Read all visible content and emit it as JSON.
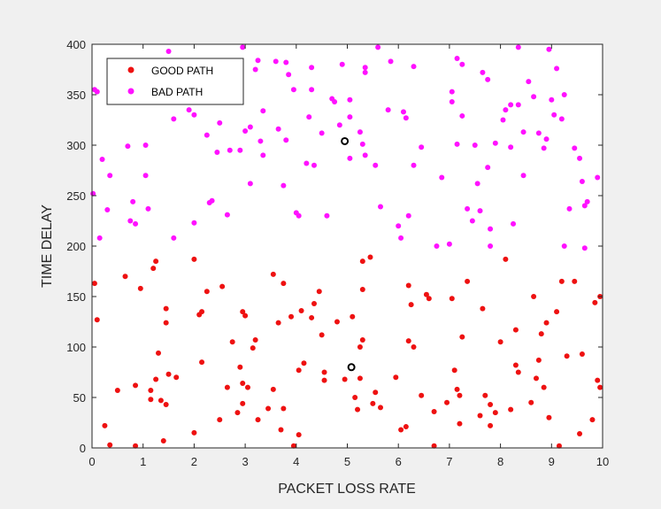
{
  "chart_data": {
    "type": "scatter",
    "xlabel": "PACKET LOSS RATE",
    "ylabel": "TIME DELAY",
    "xlim": [
      0,
      10
    ],
    "ylim": [
      0,
      400
    ],
    "xticks": [
      0,
      1,
      2,
      3,
      4,
      5,
      6,
      7,
      8,
      9,
      10
    ],
    "yticks": [
      0,
      50,
      100,
      150,
      200,
      250,
      300,
      350,
      400
    ],
    "grid": false,
    "legend_position": "top-left",
    "series": [
      {
        "name": "GOOD PATH",
        "color": "#ee1111",
        "points": [
          [
            0.05,
            163
          ],
          [
            0.1,
            127
          ],
          [
            0.25,
            22
          ],
          [
            0.35,
            3
          ],
          [
            0.5,
            57
          ],
          [
            0.65,
            170
          ],
          [
            0.85,
            2
          ],
          [
            0.85,
            62
          ],
          [
            0.95,
            158
          ],
          [
            1.15,
            48
          ],
          [
            1.15,
            57
          ],
          [
            1.2,
            178
          ],
          [
            1.25,
            68
          ],
          [
            1.25,
            185
          ],
          [
            1.3,
            94
          ],
          [
            1.35,
            47
          ],
          [
            1.4,
            7
          ],
          [
            1.45,
            138
          ],
          [
            1.45,
            124
          ],
          [
            1.45,
            43
          ],
          [
            1.5,
            73
          ],
          [
            1.65,
            70
          ],
          [
            2.0,
            15
          ],
          [
            2.0,
            187
          ],
          [
            2.1,
            132
          ],
          [
            2.15,
            85
          ],
          [
            2.15,
            135
          ],
          [
            2.25,
            155
          ],
          [
            2.5,
            28
          ],
          [
            2.55,
            160
          ],
          [
            2.65,
            60
          ],
          [
            2.75,
            105
          ],
          [
            2.85,
            35
          ],
          [
            2.9,
            80
          ],
          [
            2.95,
            135
          ],
          [
            2.95,
            64
          ],
          [
            2.95,
            44
          ],
          [
            3.0,
            131
          ],
          [
            3.05,
            60
          ],
          [
            3.15,
            99
          ],
          [
            3.2,
            107
          ],
          [
            3.25,
            28
          ],
          [
            3.45,
            39
          ],
          [
            3.55,
            58
          ],
          [
            3.55,
            172
          ],
          [
            3.65,
            124
          ],
          [
            3.7,
            18
          ],
          [
            3.75,
            163
          ],
          [
            3.75,
            39
          ],
          [
            3.9,
            130
          ],
          [
            3.95,
            2
          ],
          [
            4.05,
            13
          ],
          [
            4.05,
            77
          ],
          [
            4.1,
            136
          ],
          [
            4.15,
            84
          ],
          [
            4.3,
            129
          ],
          [
            4.35,
            143
          ],
          [
            4.45,
            155
          ],
          [
            4.5,
            112
          ],
          [
            4.55,
            75
          ],
          [
            4.55,
            67
          ],
          [
            4.8,
            125
          ],
          [
            4.95,
            68
          ],
          [
            5.1,
            130
          ],
          [
            5.15,
            50
          ],
          [
            5.2,
            38
          ],
          [
            5.25,
            69
          ],
          [
            5.25,
            100
          ],
          [
            5.3,
            107
          ],
          [
            5.3,
            157
          ],
          [
            5.3,
            185
          ],
          [
            5.45,
            189
          ],
          [
            5.5,
            44
          ],
          [
            5.55,
            55
          ],
          [
            5.65,
            40
          ],
          [
            5.95,
            70
          ],
          [
            6.05,
            18
          ],
          [
            6.15,
            21
          ],
          [
            6.2,
            106
          ],
          [
            6.2,
            161
          ],
          [
            6.25,
            142
          ],
          [
            6.3,
            100
          ],
          [
            6.45,
            52
          ],
          [
            6.55,
            152
          ],
          [
            6.6,
            148
          ],
          [
            6.7,
            36
          ],
          [
            6.7,
            2
          ],
          [
            6.95,
            45
          ],
          [
            7.05,
            148
          ],
          [
            7.1,
            77
          ],
          [
            7.15,
            58
          ],
          [
            7.2,
            24
          ],
          [
            7.2,
            52
          ],
          [
            7.25,
            110
          ],
          [
            7.35,
            165
          ],
          [
            7.6,
            32
          ],
          [
            7.65,
            138
          ],
          [
            7.7,
            52
          ],
          [
            7.8,
            43
          ],
          [
            7.8,
            22
          ],
          [
            7.9,
            35
          ],
          [
            8.0,
            105
          ],
          [
            8.1,
            187
          ],
          [
            8.2,
            38
          ],
          [
            8.3,
            117
          ],
          [
            8.3,
            82
          ],
          [
            8.35,
            75
          ],
          [
            8.6,
            45
          ],
          [
            8.65,
            150
          ],
          [
            8.7,
            69
          ],
          [
            8.75,
            87
          ],
          [
            8.8,
            113
          ],
          [
            8.85,
            60
          ],
          [
            8.9,
            124
          ],
          [
            8.95,
            30
          ],
          [
            9.1,
            135
          ],
          [
            9.15,
            2
          ],
          [
            9.2,
            165
          ],
          [
            9.3,
            91
          ],
          [
            9.45,
            165
          ],
          [
            9.55,
            14
          ],
          [
            9.6,
            93
          ],
          [
            9.8,
            28
          ],
          [
            9.85,
            144
          ],
          [
            9.9,
            67
          ],
          [
            9.95,
            150
          ],
          [
            9.95,
            60
          ]
        ]
      },
      {
        "name": "BAD PATH",
        "color": "#ff11ff",
        "points": [
          [
            0.02,
            252
          ],
          [
            0.05,
            355
          ],
          [
            0.1,
            353
          ],
          [
            0.15,
            208
          ],
          [
            0.2,
            286
          ],
          [
            0.3,
            236
          ],
          [
            0.35,
            270
          ],
          [
            0.7,
            299
          ],
          [
            0.75,
            225
          ],
          [
            0.8,
            244
          ],
          [
            0.85,
            222
          ],
          [
            1.05,
            300
          ],
          [
            1.05,
            270
          ],
          [
            1.1,
            237
          ],
          [
            1.25,
            380
          ],
          [
            1.5,
            393
          ],
          [
            1.6,
            208
          ],
          [
            1.6,
            326
          ],
          [
            1.9,
            335
          ],
          [
            2.0,
            330
          ],
          [
            2.0,
            223
          ],
          [
            2.25,
            310
          ],
          [
            2.3,
            243
          ],
          [
            2.35,
            245
          ],
          [
            2.45,
            293
          ],
          [
            2.5,
            322
          ],
          [
            2.65,
            231
          ],
          [
            2.7,
            295
          ],
          [
            2.9,
            295
          ],
          [
            2.95,
            397
          ],
          [
            3.0,
            314
          ],
          [
            3.1,
            318
          ],
          [
            3.1,
            262
          ],
          [
            3.2,
            375
          ],
          [
            3.25,
            384
          ],
          [
            3.3,
            304
          ],
          [
            3.35,
            334
          ],
          [
            3.35,
            290
          ],
          [
            3.6,
            383
          ],
          [
            3.65,
            316
          ],
          [
            3.75,
            260
          ],
          [
            3.8,
            305
          ],
          [
            3.8,
            382
          ],
          [
            3.85,
            370
          ],
          [
            3.95,
            355
          ],
          [
            4.0,
            233
          ],
          [
            4.05,
            230
          ],
          [
            4.2,
            282
          ],
          [
            4.25,
            328
          ],
          [
            4.3,
            377
          ],
          [
            4.3,
            355
          ],
          [
            4.35,
            280
          ],
          [
            4.5,
            312
          ],
          [
            4.6,
            230
          ],
          [
            4.7,
            346
          ],
          [
            4.75,
            343
          ],
          [
            4.85,
            320
          ],
          [
            4.9,
            380
          ],
          [
            5.05,
            328
          ],
          [
            5.05,
            345
          ],
          [
            5.05,
            287
          ],
          [
            5.25,
            313
          ],
          [
            5.3,
            301
          ],
          [
            5.35,
            372
          ],
          [
            5.35,
            377
          ],
          [
            5.35,
            290
          ],
          [
            5.55,
            280
          ],
          [
            5.6,
            397
          ],
          [
            5.65,
            239
          ],
          [
            5.8,
            335
          ],
          [
            5.85,
            383
          ],
          [
            6.0,
            220
          ],
          [
            6.05,
            208
          ],
          [
            6.1,
            333
          ],
          [
            6.15,
            327
          ],
          [
            6.2,
            230
          ],
          [
            6.3,
            378
          ],
          [
            6.3,
            280
          ],
          [
            6.45,
            298
          ],
          [
            6.75,
            200
          ],
          [
            6.85,
            268
          ],
          [
            7.0,
            202
          ],
          [
            7.05,
            353
          ],
          [
            7.05,
            343
          ],
          [
            7.15,
            386
          ],
          [
            7.15,
            301
          ],
          [
            7.25,
            380
          ],
          [
            7.25,
            329
          ],
          [
            7.35,
            237
          ],
          [
            7.45,
            225
          ],
          [
            7.5,
            300
          ],
          [
            7.55,
            262
          ],
          [
            7.6,
            235
          ],
          [
            7.65,
            372
          ],
          [
            7.75,
            278
          ],
          [
            7.75,
            365
          ],
          [
            7.8,
            200
          ],
          [
            7.8,
            217
          ],
          [
            7.9,
            302
          ],
          [
            8.05,
            325
          ],
          [
            8.1,
            335
          ],
          [
            8.2,
            340
          ],
          [
            8.2,
            298
          ],
          [
            8.25,
            222
          ],
          [
            8.35,
            397
          ],
          [
            8.35,
            340
          ],
          [
            8.45,
            313
          ],
          [
            8.45,
            270
          ],
          [
            8.55,
            363
          ],
          [
            8.65,
            348
          ],
          [
            8.75,
            312
          ],
          [
            8.85,
            297
          ],
          [
            8.9,
            306
          ],
          [
            8.95,
            395
          ],
          [
            9.0,
            345
          ],
          [
            9.05,
            330
          ],
          [
            9.1,
            376
          ],
          [
            9.2,
            326
          ],
          [
            9.25,
            350
          ],
          [
            9.25,
            200
          ],
          [
            9.35,
            237
          ],
          [
            9.45,
            297
          ],
          [
            9.55,
            287
          ],
          [
            9.6,
            264
          ],
          [
            9.65,
            240
          ],
          [
            9.65,
            198
          ],
          [
            9.7,
            244
          ],
          [
            9.9,
            268
          ]
        ]
      },
      {
        "color": "#000000",
        "marker": "open-circle",
        "points": [
          [
            4.95,
            304
          ],
          [
            5.08,
            80
          ]
        ]
      }
    ]
  }
}
